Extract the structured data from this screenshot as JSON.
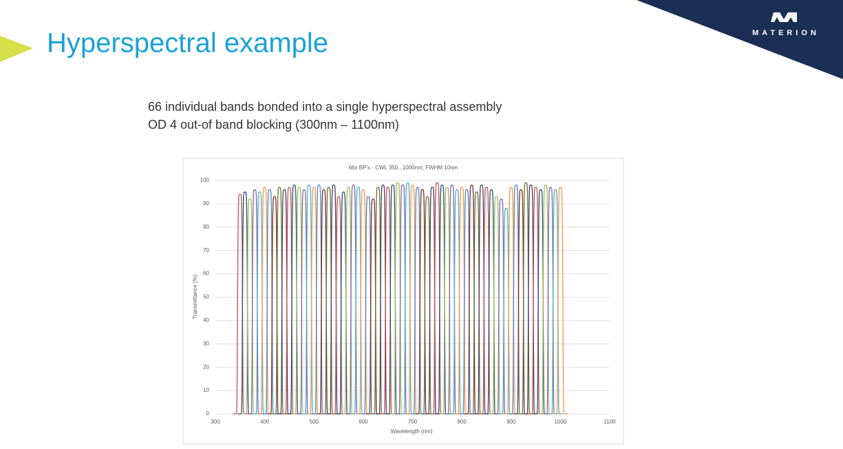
{
  "title": "Hyperspectral example",
  "logo": "MATERION",
  "bullets": [
    "66 individual bands bonded into a single hyperspectral assembly",
    "OD 4 out-of band blocking (300nm – 1100nm)"
  ],
  "chart_data": {
    "type": "bandpass",
    "title": "66x BP's - CWL 350...1000nm, FWHM 10nm",
    "x_label": "Wavelength (nm)",
    "y_label": "Transmittance (%)",
    "fwhm": 10,
    "centers": [
      350,
      360,
      370,
      380,
      390,
      400,
      410,
      420,
      430,
      440,
      450,
      460,
      470,
      480,
      490,
      500,
      510,
      520,
      530,
      540,
      550,
      560,
      570,
      580,
      590,
      600,
      610,
      620,
      630,
      640,
      650,
      660,
      670,
      680,
      690,
      700,
      710,
      720,
      730,
      740,
      750,
      760,
      770,
      780,
      790,
      800,
      810,
      820,
      830,
      840,
      850,
      860,
      870,
      880,
      890,
      900,
      910,
      920,
      930,
      940,
      950,
      960,
      970,
      980,
      990,
      1000
    ],
    "peaks": [
      94,
      95,
      92,
      96,
      95,
      97,
      96,
      93,
      97,
      96,
      97,
      98,
      97,
      96,
      98,
      97,
      98,
      96,
      97,
      98,
      93,
      95,
      97,
      98,
      97,
      96,
      93,
      92,
      97,
      98,
      97,
      98,
      99,
      98,
      99,
      98,
      97,
      96,
      93,
      97,
      99,
      98,
      97,
      98,
      96,
      97,
      96,
      98,
      95,
      98,
      97,
      96,
      93,
      92,
      88,
      97,
      98,
      96,
      99,
      98,
      97,
      96,
      98,
      97,
      96,
      97
    ],
    "palette": [
      "#c0504d",
      "#2c4d75",
      "#9bbb59",
      "#8064a2",
      "#4bacc6",
      "#f79646",
      "#4f81bd",
      "#772c2a",
      "#5f7530",
      "#4d3b62"
    ],
    "xlim": [
      300,
      1100
    ],
    "xticks": [
      300,
      400,
      500,
      600,
      700,
      800,
      900,
      1000,
      1100
    ],
    "ylim": [
      0,
      100
    ],
    "yticks": [
      0,
      10,
      20,
      30,
      40,
      50,
      60,
      70,
      80,
      90,
      100
    ],
    "grid": true
  }
}
